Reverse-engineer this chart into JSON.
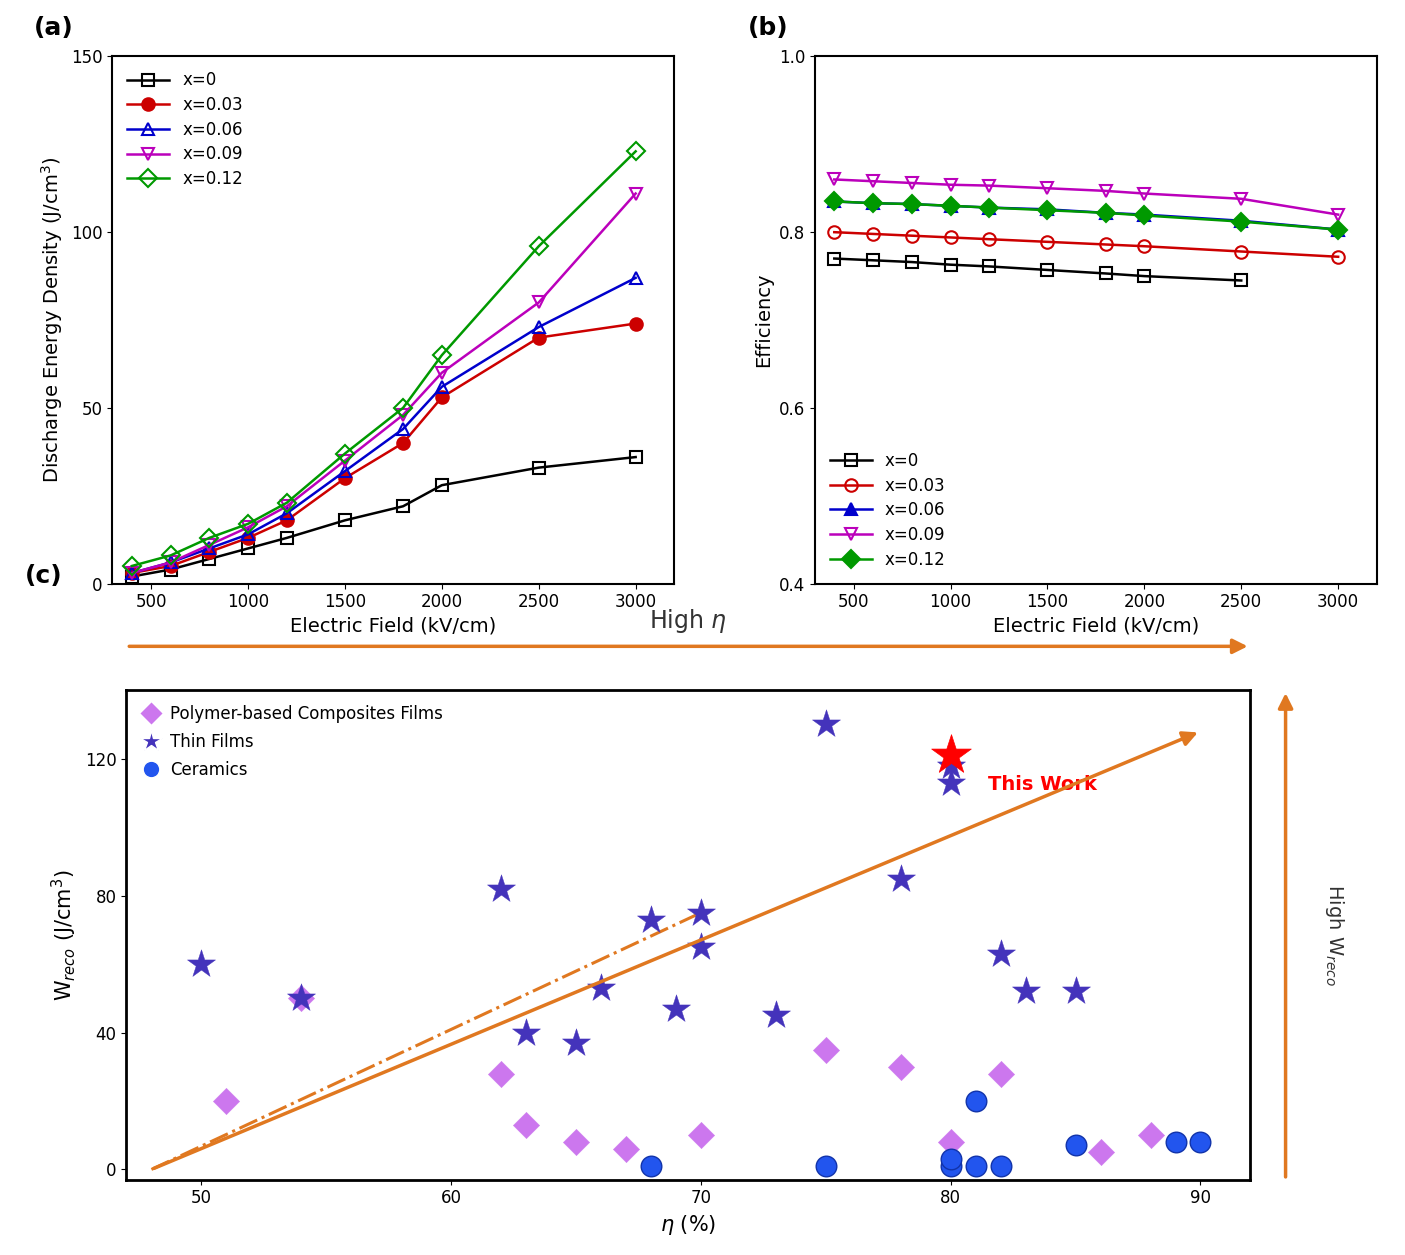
{
  "panel_a": {
    "x": [
      400,
      600,
      800,
      1000,
      1200,
      1500,
      1800,
      2000,
      2500,
      3000
    ],
    "series": {
      "x=0": [
        2,
        4,
        7,
        10,
        13,
        18,
        22,
        28,
        33,
        36
      ],
      "x=0.03": [
        3,
        5,
        9,
        13,
        18,
        30,
        40,
        53,
        70,
        74
      ],
      "x=0.06": [
        3,
        6,
        10,
        14,
        20,
        32,
        44,
        56,
        73,
        87
      ],
      "x=0.09": [
        3,
        6,
        11,
        16,
        22,
        35,
        48,
        60,
        80,
        111
      ],
      "x=0.12": [
        5,
        8,
        13,
        17,
        23,
        37,
        50,
        65,
        96,
        123
      ]
    },
    "colors": {
      "x=0": "#000000",
      "x=0.03": "#cc0000",
      "x=0.06": "#0000cc",
      "x=0.09": "#bb00bb",
      "x=0.12": "#009900"
    },
    "markers": {
      "x=0": "s",
      "x=0.03": "o",
      "x=0.06": "^",
      "x=0.09": "v",
      "x=0.12": "D"
    },
    "open_markers": [
      "x=0",
      "x=0.03",
      "x=0.06",
      "x=0.09",
      "x=0.12"
    ],
    "ylabel": "Discharge Energy Density (J/cm$^3$)",
    "xlabel": "Electric Field (kV/cm)",
    "ylim": [
      0,
      150
    ],
    "yticks": [
      0,
      50,
      100,
      150
    ],
    "xlim": [
      300,
      3200
    ],
    "xticks": [
      500,
      1000,
      1500,
      2000,
      2500,
      3000
    ]
  },
  "panel_b": {
    "x": [
      400,
      600,
      800,
      1000,
      1200,
      1500,
      1800,
      2000,
      2500,
      3000
    ],
    "series": {
      "x=0": [
        0.77,
        0.768,
        0.766,
        0.763,
        0.761,
        0.757,
        0.753,
        0.75,
        0.745,
        null
      ],
      "x=0.03": [
        0.8,
        0.798,
        0.796,
        0.794,
        0.792,
        0.789,
        0.786,
        0.784,
        0.778,
        0.772
      ],
      "x=0.06": [
        0.835,
        0.833,
        0.832,
        0.83,
        0.828,
        0.826,
        0.822,
        0.82,
        0.813,
        0.803
      ],
      "x=0.09": [
        0.86,
        0.858,
        0.856,
        0.854,
        0.853,
        0.85,
        0.847,
        0.844,
        0.838,
        0.82
      ],
      "x=0.12": [
        0.835,
        0.833,
        0.832,
        0.83,
        0.828,
        0.825,
        0.822,
        0.819,
        0.812,
        0.803
      ]
    },
    "colors": {
      "x=0": "#000000",
      "x=0.03": "#cc0000",
      "x=0.06": "#0000cc",
      "x=0.09": "#bb00bb",
      "x=0.12": "#009900"
    },
    "markers": {
      "x=0": "s",
      "x=0.03": "o",
      "x=0.06": "^",
      "x=0.09": "v",
      "x=0.12": "D"
    },
    "ylabel": "Efficiency",
    "xlabel": "Electric Field (kV/cm)",
    "ylim": [
      0.4,
      1.0
    ],
    "yticks": [
      0.4,
      0.6,
      0.8,
      1.0
    ],
    "xlim": [
      300,
      3200
    ],
    "xticks": [
      500,
      1000,
      1500,
      2000,
      2500,
      3000
    ]
  },
  "panel_c": {
    "polymer_composite": [
      [
        51,
        20
      ],
      [
        54,
        50
      ],
      [
        62,
        28
      ],
      [
        63,
        13
      ],
      [
        65,
        8
      ],
      [
        67,
        6
      ],
      [
        70,
        10
      ],
      [
        75,
        35
      ],
      [
        78,
        30
      ],
      [
        80,
        8
      ],
      [
        82,
        28
      ],
      [
        86,
        5
      ],
      [
        88,
        10
      ]
    ],
    "thin_films": [
      [
        50,
        60
      ],
      [
        54,
        50
      ],
      [
        62,
        82
      ],
      [
        63,
        40
      ],
      [
        65,
        37
      ],
      [
        66,
        53
      ],
      [
        68,
        73
      ],
      [
        69,
        47
      ],
      [
        70,
        65
      ],
      [
        70,
        75
      ],
      [
        73,
        45
      ],
      [
        75,
        130
      ],
      [
        78,
        85
      ],
      [
        80,
        113
      ],
      [
        80,
        118
      ],
      [
        82,
        63
      ],
      [
        83,
        52
      ],
      [
        85,
        52
      ]
    ],
    "ceramics": [
      [
        68,
        1
      ],
      [
        75,
        1
      ],
      [
        80,
        1
      ],
      [
        80,
        3
      ],
      [
        81,
        1
      ],
      [
        81,
        20
      ],
      [
        82,
        1
      ],
      [
        85,
        7
      ],
      [
        89,
        8
      ],
      [
        90,
        8
      ]
    ],
    "this_work": [
      [
        80,
        121
      ]
    ],
    "xlabel": "$\\eta$ (%)",
    "ylabel": "W$_{reco}$ (J/cm$^3$)",
    "xlim": [
      47,
      92
    ],
    "ylim": [
      -3,
      140
    ],
    "yticks": [
      0,
      40,
      80,
      120
    ],
    "xticks": [
      50,
      60,
      70,
      80,
      90
    ]
  },
  "orange_color": "#e07820",
  "background_color": "#ffffff",
  "panel_label_fontsize": 18,
  "axis_label_fontsize": 14,
  "tick_fontsize": 12,
  "legend_fontsize": 12
}
